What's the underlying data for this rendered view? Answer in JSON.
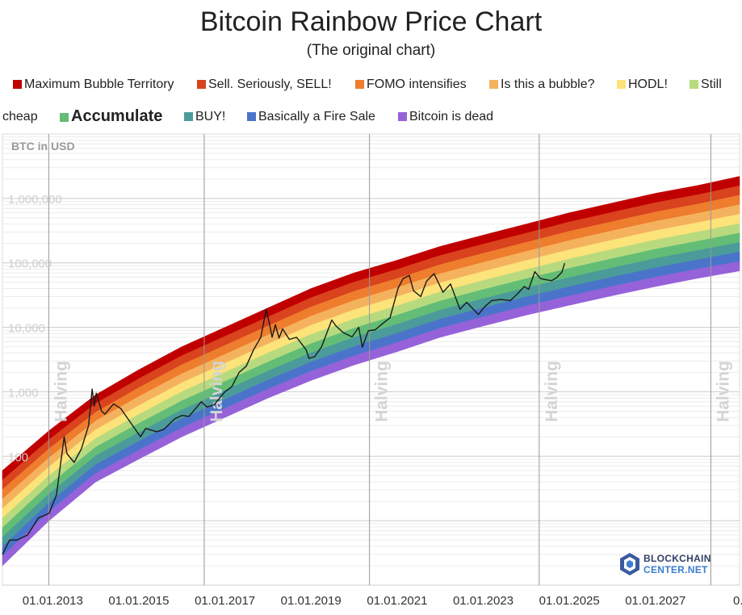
{
  "chart_data": {
    "type": "area",
    "title": "Bitcoin Rainbow Price Chart",
    "subtitle": "(The original chart)",
    "ylabel": "BTC in USD",
    "yscale": "log",
    "ylim": [
      1,
      10000000
    ],
    "xlim": [
      "2011-11-01",
      "2028-12-15"
    ],
    "grid": true,
    "legend_position": "top",
    "y_ticks": [
      {
        "value": 100,
        "label": "100"
      },
      {
        "value": 1000,
        "label": "1,000"
      },
      {
        "value": 10000,
        "label": "10,000"
      },
      {
        "value": 100000,
        "label": "100,000"
      },
      {
        "value": 1000000,
        "label": "1,000,000"
      }
    ],
    "x_ticks": [
      {
        "date": "2013-01-01",
        "label": "01.01.2013"
      },
      {
        "date": "2015-01-01",
        "label": "01.01.2015"
      },
      {
        "date": "2017-01-01",
        "label": "01.01.2017"
      },
      {
        "date": "2019-01-01",
        "label": "01.01.2019"
      },
      {
        "date": "2021-01-01",
        "label": "01.01.2021"
      },
      {
        "date": "2023-01-01",
        "label": "01.01.2023"
      },
      {
        "date": "2025-01-01",
        "label": "01.01.2025"
      },
      {
        "date": "2027-01-01",
        "label": "01.01.2027"
      },
      {
        "date": "2029-01-01",
        "label": "0..."
      }
    ],
    "halvings": [
      {
        "date": "2012-11-28",
        "label": "Halving"
      },
      {
        "date": "2016-07-09",
        "label": "Halving"
      },
      {
        "date": "2020-05-11",
        "label": "Halving"
      },
      {
        "date": "2024-04-20",
        "label": "Halving"
      },
      {
        "date": "2028-04-15",
        "label": "Halving"
      }
    ],
    "bands": [
      {
        "name": "Maximum Bubble Territory",
        "color": "#c00000"
      },
      {
        "name": "Sell. Seriously, SELL!",
        "color": "#d9431e"
      },
      {
        "name": "FOMO intensifies",
        "color": "#ee7d2e"
      },
      {
        "name": "Is this a bubble?",
        "color": "#f5b25e"
      },
      {
        "name": "HODL!",
        "color": "#fce37a"
      },
      {
        "name": "Still cheap",
        "color": "#b8da7e"
      },
      {
        "name": "Accumulate",
        "color": "#63bd76"
      },
      {
        "name": "BUY!",
        "color": "#4b9b9a"
      },
      {
        "name": "Basically a Fire Sale",
        "color": "#4a74c9"
      },
      {
        "name": "Bitcoin is dead",
        "color": "#9562d9"
      }
    ],
    "band_anchors": [
      {
        "date": "2011-11-01",
        "top": 60,
        "bottom": 2
      },
      {
        "date": "2012-12-01",
        "top": 250,
        "bottom": 10
      },
      {
        "date": "2014-01-01",
        "top": 900,
        "bottom": 40
      },
      {
        "date": "2015-01-01",
        "top": 2200,
        "bottom": 90
      },
      {
        "date": "2016-01-01",
        "top": 5000,
        "bottom": 200
      },
      {
        "date": "2017-01-01",
        "top": 10000,
        "bottom": 400
      },
      {
        "date": "2018-01-01",
        "top": 20000,
        "bottom": 800
      },
      {
        "date": "2019-01-01",
        "top": 40000,
        "bottom": 1500
      },
      {
        "date": "2020-01-01",
        "top": 70000,
        "bottom": 2600
      },
      {
        "date": "2021-01-01",
        "top": 110000,
        "bottom": 4200
      },
      {
        "date": "2022-01-01",
        "top": 180000,
        "bottom": 7000
      },
      {
        "date": "2023-01-01",
        "top": 270000,
        "bottom": 10500
      },
      {
        "date": "2024-01-01",
        "top": 400000,
        "bottom": 15500
      },
      {
        "date": "2025-01-01",
        "top": 600000,
        "bottom": 22000
      },
      {
        "date": "2026-01-01",
        "top": 850000,
        "bottom": 31000
      },
      {
        "date": "2027-01-01",
        "top": 1200000,
        "bottom": 43000
      },
      {
        "date": "2028-01-01",
        "top": 1600000,
        "bottom": 58000
      },
      {
        "date": "2028-12-15",
        "top": 2200000,
        "bottom": 75000
      }
    ],
    "series": [
      {
        "name": "BTC price",
        "color": "#1a1a1a",
        "points": [
          [
            "2011-11-01",
            3
          ],
          [
            "2012-01-01",
            5
          ],
          [
            "2012-03-01",
            5
          ],
          [
            "2012-06-01",
            6
          ],
          [
            "2012-09-01",
            11
          ],
          [
            "2012-12-01",
            13
          ],
          [
            "2013-02-01",
            25
          ],
          [
            "2013-04-08",
            200
          ],
          [
            "2013-05-01",
            110
          ],
          [
            "2013-07-01",
            80
          ],
          [
            "2013-09-01",
            130
          ],
          [
            "2013-11-01",
            300
          ],
          [
            "2013-12-01",
            1100
          ],
          [
            "2013-12-20",
            600
          ],
          [
            "2014-01-05",
            950
          ],
          [
            "2014-02-20",
            500
          ],
          [
            "2014-03-20",
            450
          ],
          [
            "2014-06-01",
            650
          ],
          [
            "2014-08-01",
            550
          ],
          [
            "2014-10-01",
            380
          ],
          [
            "2015-01-15",
            200
          ],
          [
            "2015-03-01",
            270
          ],
          [
            "2015-06-01",
            240
          ],
          [
            "2015-08-01",
            260
          ],
          [
            "2015-11-01",
            380
          ],
          [
            "2016-01-01",
            430
          ],
          [
            "2016-03-01",
            415
          ],
          [
            "2016-06-15",
            700
          ],
          [
            "2016-08-01",
            580
          ],
          [
            "2016-10-01",
            630
          ],
          [
            "2017-01-01",
            1000
          ],
          [
            "2017-03-01",
            1200
          ],
          [
            "2017-05-01",
            2000
          ],
          [
            "2017-07-01",
            2500
          ],
          [
            "2017-09-01",
            4500
          ],
          [
            "2017-11-01",
            7000
          ],
          [
            "2017-12-17",
            19000
          ],
          [
            "2018-01-15",
            11000
          ],
          [
            "2018-02-05",
            7000
          ],
          [
            "2018-03-05",
            11000
          ],
          [
            "2018-04-05",
            6800
          ],
          [
            "2018-05-05",
            9500
          ],
          [
            "2018-07-01",
            6500
          ],
          [
            "2018-09-01",
            7000
          ],
          [
            "2018-11-20",
            4500
          ],
          [
            "2018-12-15",
            3300
          ],
          [
            "2019-02-01",
            3500
          ],
          [
            "2019-04-01",
            5000
          ],
          [
            "2019-06-26",
            13000
          ],
          [
            "2019-08-01",
            10500
          ],
          [
            "2019-10-01",
            8300
          ],
          [
            "2019-12-15",
            7100
          ],
          [
            "2020-02-10",
            10000
          ],
          [
            "2020-03-12",
            4900
          ],
          [
            "2020-05-01",
            8800
          ],
          [
            "2020-07-01",
            9200
          ],
          [
            "2020-09-01",
            11500
          ],
          [
            "2020-11-01",
            14000
          ],
          [
            "2021-01-08",
            40000
          ],
          [
            "2021-02-20",
            57000
          ],
          [
            "2021-04-14",
            64000
          ],
          [
            "2021-05-20",
            37000
          ],
          [
            "2021-07-20",
            30000
          ],
          [
            "2021-09-07",
            52000
          ],
          [
            "2021-11-10",
            68000
          ],
          [
            "2022-01-24",
            35000
          ],
          [
            "2022-03-30",
            47000
          ],
          [
            "2022-06-18",
            19000
          ],
          [
            "2022-08-14",
            24500
          ],
          [
            "2022-11-21",
            15800
          ],
          [
            "2023-01-15",
            21000
          ],
          [
            "2023-03-15",
            26000
          ],
          [
            "2023-06-01",
            27000
          ],
          [
            "2023-08-20",
            26000
          ],
          [
            "2023-10-25",
            34000
          ],
          [
            "2023-12-15",
            43000
          ],
          [
            "2024-01-22",
            39000
          ],
          [
            "2024-03-14",
            73000
          ],
          [
            "2024-05-01",
            57000
          ],
          [
            "2024-07-05",
            54000
          ],
          [
            "2024-08-05",
            53000
          ],
          [
            "2024-09-15",
            59000
          ],
          [
            "2024-10-30",
            72000
          ],
          [
            "2024-11-22",
            99000
          ]
        ]
      }
    ]
  },
  "legend": {
    "items": [
      {
        "label": "Maximum Bubble Territory",
        "color": "#c00000"
      },
      {
        "label": "Sell. Seriously, SELL!",
        "color": "#d9431e"
      },
      {
        "label": "FOMO intensifies",
        "color": "#ee7d2e"
      },
      {
        "label": "Is this a bubble?",
        "color": "#f5b25e"
      },
      {
        "label": "HODL!",
        "color": "#fce37a"
      },
      {
        "label": "Still",
        "color": "#b8da7e"
      },
      {
        "label": "cheap",
        "color": ""
      },
      {
        "label": "Accumulate",
        "color": "#63bd76"
      },
      {
        "label": "BUY!",
        "color": "#4b9b9a"
      },
      {
        "label": "Basically a Fire Sale",
        "color": "#4a74c9"
      },
      {
        "label": "Bitcoin is dead",
        "color": "#9562d9"
      }
    ]
  },
  "logo": {
    "line1": "BLOCKCHAIN",
    "line2": "CENTER.NET"
  }
}
